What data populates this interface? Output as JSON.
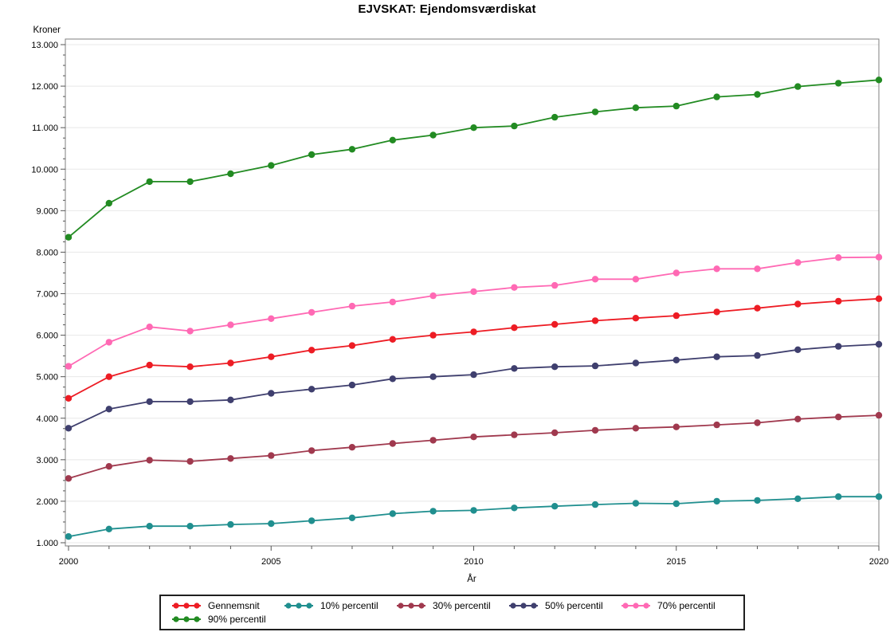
{
  "title": "EJVSKAT: Ejendomsværdiskat",
  "chart_data": {
    "type": "line",
    "title": "EJVSKAT: Ejendomsværdiskat",
    "xlabel": "År",
    "ylabel": "Kroner",
    "grid": "horizontal",
    "legend_position": "bottom",
    "ylim": [
      1000,
      13000
    ],
    "x_axis": {
      "range": [
        2000,
        2020
      ],
      "tick_values": [
        2000,
        2005,
        2010,
        2015,
        2020
      ],
      "tick_labels": [
        "2000",
        "2005",
        "2010",
        "2015",
        "2020"
      ],
      "minor_step": 1
    },
    "y_axis": {
      "tick_values": [
        1000,
        2000,
        3000,
        4000,
        5000,
        6000,
        7000,
        8000,
        9000,
        10000,
        11000,
        12000,
        13000
      ],
      "tick_labels": [
        "1.000",
        "2.000",
        "3.000",
        "4.000",
        "5.000",
        "6.000",
        "7.000",
        "8.000",
        "9.000",
        "10.000",
        "11.000",
        "12.000",
        "13.000"
      ],
      "minor_step": 250
    },
    "x": [
      2000,
      2001,
      2002,
      2003,
      2004,
      2005,
      2006,
      2007,
      2008,
      2009,
      2010,
      2011,
      2012,
      2013,
      2014,
      2015,
      2016,
      2017,
      2018,
      2019,
      2020
    ],
    "series": [
      {
        "name": "Gennemsnit",
        "color": "#ed1c24",
        "values": [
          4480,
          5000,
          5280,
          5240,
          5330,
          5480,
          5640,
          5750,
          5900,
          6000,
          6080,
          6180,
          6260,
          6350,
          6410,
          6470,
          6560,
          6650,
          6750,
          6820,
          6880
        ]
      },
      {
        "name": "10% percentil",
        "color": "#208f8f",
        "values": [
          1150,
          1330,
          1400,
          1400,
          1440,
          1460,
          1530,
          1600,
          1700,
          1760,
          1780,
          1840,
          1880,
          1920,
          1950,
          1940,
          2000,
          2020,
          2060,
          2110,
          2110
        ]
      },
      {
        "name": "30% percentil",
        "color": "#a0394e",
        "values": [
          2550,
          2840,
          2990,
          2960,
          3030,
          3100,
          3220,
          3300,
          3390,
          3470,
          3550,
          3600,
          3650,
          3710,
          3760,
          3790,
          3840,
          3890,
          3980,
          4030,
          4070
        ]
      },
      {
        "name": "50% percentil",
        "color": "#3f3f6e",
        "values": [
          3760,
          4220,
          4400,
          4400,
          4440,
          4600,
          4700,
          4800,
          4950,
          5000,
          5050,
          5200,
          5240,
          5260,
          5330,
          5400,
          5480,
          5510,
          5650,
          5730,
          5780
        ]
      },
      {
        "name": "70% percentil",
        "color": "#ff69b4",
        "values": [
          5250,
          5830,
          6200,
          6100,
          6250,
          6400,
          6550,
          6700,
          6800,
          6950,
          7050,
          7150,
          7200,
          7350,
          7350,
          7500,
          7600,
          7600,
          7750,
          7870,
          7880
        ]
      },
      {
        "name": "90% percentil",
        "color": "#228b22",
        "values": [
          8360,
          9180,
          9700,
          9700,
          9890,
          10090,
          10350,
          10480,
          10700,
          10820,
          11000,
          11040,
          11250,
          11380,
          11480,
          11520,
          11740,
          11800,
          11990,
          12070,
          12150
        ]
      }
    ],
    "colors": {
      "grid": "#e8e8e8",
      "frame": "#7f7f7f",
      "tick": "#555555",
      "text": "#000000"
    }
  }
}
